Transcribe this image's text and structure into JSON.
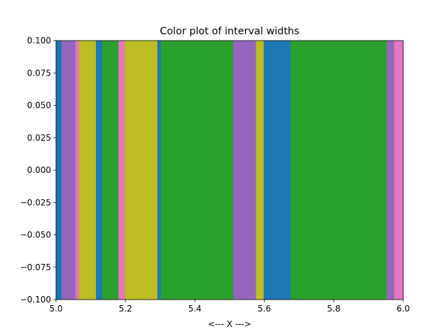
{
  "chart_data": {
    "type": "heatmap",
    "title": "Color plot of interval widths",
    "xlabel": "<--- X --->",
    "ylabel": "",
    "xlim": [
      5.0,
      6.0
    ],
    "ylim": [
      -0.1,
      0.1
    ],
    "x_ticks": [
      5.0,
      5.2,
      5.4,
      5.6,
      5.8,
      6.0
    ],
    "x_tick_labels": [
      "5.0",
      "5.2",
      "5.4",
      "5.6",
      "5.8",
      "6.0"
    ],
    "y_ticks": [
      -0.1,
      -0.075,
      -0.05,
      -0.025,
      0.0,
      0.025,
      0.05,
      0.075,
      0.1
    ],
    "y_tick_labels": [
      "−0.100",
      "−0.075",
      "−0.050",
      "−0.025",
      "0.000",
      "0.025",
      "0.050",
      "0.075",
      "0.100"
    ],
    "grid": false,
    "palette": {
      "blue": "#1f77b4",
      "purple": "#9467bd",
      "olive": "#bcbd22",
      "pink": "#e377c2",
      "green": "#2ca02c"
    },
    "intervals": [
      {
        "x0": 5.0,
        "x1": 5.016,
        "color": "#1f77b4"
      },
      {
        "x0": 5.016,
        "x1": 5.056,
        "color": "#9467bd"
      },
      {
        "x0": 5.056,
        "x1": 5.066,
        "color": "#e377c2"
      },
      {
        "x0": 5.066,
        "x1": 5.115,
        "color": "#bcbd22"
      },
      {
        "x0": 5.115,
        "x1": 5.133,
        "color": "#1f77b4"
      },
      {
        "x0": 5.133,
        "x1": 5.18,
        "color": "#2ca02c"
      },
      {
        "x0": 5.18,
        "x1": 5.198,
        "color": "#e377c2"
      },
      {
        "x0": 5.198,
        "x1": 5.292,
        "color": "#bcbd22"
      },
      {
        "x0": 5.292,
        "x1": 5.302,
        "color": "#1f77b4"
      },
      {
        "x0": 5.302,
        "x1": 5.51,
        "color": "#2ca02c"
      },
      {
        "x0": 5.51,
        "x1": 5.576,
        "color": "#9467bd"
      },
      {
        "x0": 5.576,
        "x1": 5.598,
        "color": "#bcbd22"
      },
      {
        "x0": 5.598,
        "x1": 5.676,
        "color": "#1f77b4"
      },
      {
        "x0": 5.676,
        "x1": 5.952,
        "color": "#2ca02c"
      },
      {
        "x0": 5.952,
        "x1": 5.974,
        "color": "#9467bd"
      },
      {
        "x0": 5.974,
        "x1": 6.0,
        "color": "#e377c2"
      }
    ]
  }
}
